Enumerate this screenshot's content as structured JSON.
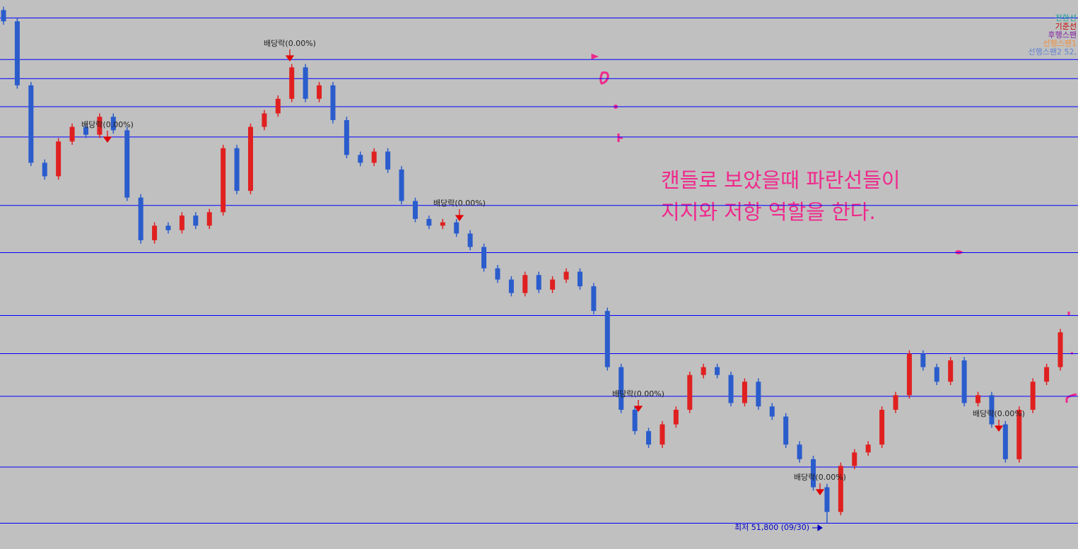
{
  "chart_data": {
    "type": "candlestick",
    "open": [
      97500,
      96500,
      90800,
      83900,
      82700,
      85800,
      87100,
      86400,
      88000,
      86800,
      80800,
      77000,
      78300,
      77900,
      79200,
      78300,
      79500,
      85200,
      81400,
      87100,
      88300,
      89600,
      92400,
      89600,
      90800,
      87700,
      84600,
      83900,
      84900,
      83300,
      80500,
      78900,
      78300,
      78600,
      77600,
      76400,
      74500,
      73500,
      72300,
      73900,
      72600,
      73500,
      74200,
      72900,
      70700,
      65700,
      61900,
      60000,
      58800,
      60600,
      61900,
      65000,
      65700,
      65000,
      62500,
      64400,
      62200,
      61300,
      58800,
      57500,
      55000,
      52800,
      56900,
      58100,
      58800,
      61900,
      63200,
      66900,
      65700,
      64400,
      66300,
      62500,
      63200,
      60600,
      57500,
      61900,
      64400,
      65700
    ],
    "high": [
      97800,
      96800,
      91100,
      84200,
      86100,
      87400,
      87400,
      88300,
      88300,
      87100,
      81100,
      78600,
      78600,
      79500,
      79500,
      79800,
      85500,
      85500,
      87400,
      88600,
      89900,
      92700,
      92700,
      91100,
      91100,
      88000,
      84900,
      85200,
      85200,
      83600,
      80800,
      79200,
      78900,
      78900,
      77900,
      76700,
      74800,
      73800,
      74200,
      74200,
      73800,
      74500,
      74500,
      73200,
      71000,
      66000,
      62200,
      60300,
      60900,
      62200,
      65300,
      66000,
      66000,
      65300,
      64700,
      64700,
      62500,
      61600,
      59100,
      57800,
      55300,
      57200,
      58400,
      59100,
      62200,
      63500,
      67200,
      67200,
      66000,
      66600,
      66600,
      63500,
      63500,
      60900,
      62200,
      64700,
      66000,
      69100
    ],
    "low": [
      96200,
      90500,
      83600,
      82400,
      82400,
      85500,
      86100,
      86100,
      86500,
      80500,
      76700,
      76700,
      77600,
      77600,
      78000,
      78000,
      79200,
      81100,
      81100,
      86800,
      88000,
      89300,
      89300,
      89300,
      87400,
      84300,
      83600,
      83600,
      83000,
      80200,
      78600,
      78000,
      78000,
      77300,
      76100,
      74200,
      73200,
      72000,
      72000,
      72300,
      72300,
      73200,
      72600,
      70400,
      65400,
      61600,
      59700,
      58500,
      58500,
      60300,
      61600,
      64700,
      64700,
      62200,
      62200,
      61900,
      61000,
      58500,
      57200,
      54700,
      51800,
      52500,
      56600,
      57800,
      58500,
      61600,
      62900,
      65400,
      64100,
      64100,
      62200,
      62200,
      60300,
      57200,
      57200,
      61600,
      64100,
      65400
    ],
    "close": [
      96500,
      90800,
      83900,
      82700,
      85800,
      87100,
      86400,
      88000,
      86800,
      80800,
      77000,
      78300,
      77900,
      79200,
      78300,
      79500,
      85200,
      81400,
      87100,
      88300,
      89600,
      92400,
      89600,
      90800,
      87700,
      84600,
      83900,
      84900,
      83300,
      80500,
      78900,
      78300,
      78600,
      77600,
      76400,
      74500,
      73500,
      72300,
      73900,
      72600,
      73500,
      74200,
      72900,
      70700,
      65700,
      61900,
      60000,
      58800,
      60600,
      61900,
      65000,
      65700,
      65000,
      62500,
      64400,
      62200,
      61300,
      58800,
      57500,
      55000,
      52800,
      56900,
      58100,
      58800,
      61900,
      63200,
      66900,
      65700,
      64400,
      66300,
      62500,
      63200,
      60600,
      57500,
      61900,
      64400,
      65700,
      68800
    ],
    "up_color": "#e02020",
    "down_color": "#2a5ccc",
    "ylim": [
      49500,
      98400
    ],
    "support_lines": [
      96800,
      93100,
      91400,
      88900,
      86200,
      80100,
      75900,
      70300,
      66900,
      63100,
      56800,
      51800
    ],
    "support_color": "#0000ff",
    "annotations": [
      "배당락(0.00%)",
      "배당락(0.00%)",
      "배당락(0.00%)",
      "배당락(0.00%)",
      "배당락(0.00%)",
      "배당락(0.00%)"
    ],
    "low_label": "최저 51,800 (09/30)",
    "legend": [
      {
        "name": "전환선",
        "color": "#20a0a0"
      },
      {
        "name": "기준선",
        "color": "#c00000"
      },
      {
        "name": "후행스팬",
        "color": "#8020a0"
      },
      {
        "name": "선행스팬1",
        "color": "#f09040"
      },
      {
        "name": "선행스팬2 52,",
        "color": "#6080d0"
      }
    ],
    "note": [
      "캔들로 보았을때 파란선들이",
      "지지와 저항 역할을 한다."
    ]
  }
}
